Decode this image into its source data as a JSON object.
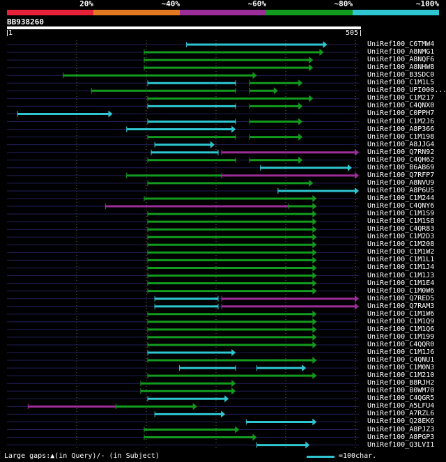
{
  "legend": {
    "segments": [
      {
        "color": "#e8213b"
      },
      {
        "color": "#e27a23"
      },
      {
        "color": "#9c2e9a"
      },
      {
        "color": "#139b1f"
      },
      {
        "color": "#2ec6d1"
      }
    ],
    "labels": [
      "20%",
      "~40%",
      "~60%",
      "~80%",
      "~100%"
    ]
  },
  "query": {
    "id": "BB938260",
    "start": "1",
    "end": "505",
    "length": 505
  },
  "colors": {
    "cyan": "#2ec6d1",
    "green": "#139b1f",
    "purple": "#9c2e9a",
    "rowline": "#20205a",
    "gridline": "#6a6a6a"
  },
  "hits": [
    {
      "id": "UniRef100_C6TMW4",
      "segs": [
        [
          0.51,
          0.91,
          "cyan"
        ]
      ]
    },
    {
      "id": "UniRef100_A8NMG1",
      "segs": [
        [
          0.39,
          0.9,
          "green"
        ]
      ]
    },
    {
      "id": "UniRef100_A8NQF6",
      "segs": [
        [
          0.39,
          0.87,
          "green"
        ]
      ]
    },
    {
      "id": "UniRef100_A8NHW8",
      "segs": [
        [
          0.39,
          0.87,
          "green"
        ]
      ]
    },
    {
      "id": "UniRef100_B3SDC0",
      "segs": [
        [
          0.16,
          0.71,
          "green"
        ]
      ]
    },
    {
      "id": "UniRef100_C1M1L5",
      "segs": [
        [
          0.4,
          0.65,
          "cyan"
        ],
        [
          0.69,
          0.84,
          "green"
        ]
      ]
    },
    {
      "id": "UniRef100_UPI000...",
      "segs": [
        [
          0.24,
          0.65,
          "green"
        ],
        [
          0.69,
          0.77,
          "green"
        ]
      ]
    },
    {
      "id": "UniRef100_C1M217",
      "segs": [
        [
          0.4,
          0.87,
          "green"
        ]
      ]
    },
    {
      "id": "UniRef100_C4QNX0",
      "segs": [
        [
          0.4,
          0.65,
          "cyan"
        ],
        [
          0.69,
          0.84,
          "green"
        ]
      ]
    },
    {
      "id": "UniRef100_C0PPH7",
      "segs": [
        [
          0.03,
          0.3,
          "cyan"
        ]
      ]
    },
    {
      "id": "UniRef100_C1M2J6",
      "segs": [
        [
          0.4,
          0.65,
          "cyan"
        ],
        [
          0.69,
          0.84,
          "green"
        ]
      ]
    },
    {
      "id": "UniRef100_A8P366",
      "segs": [
        [
          0.34,
          0.65,
          "cyan"
        ]
      ]
    },
    {
      "id": "UniRef100_C1M198",
      "segs": [
        [
          0.4,
          0.65,
          "green"
        ],
        [
          0.69,
          0.84,
          "green"
        ]
      ]
    },
    {
      "id": "UniRef100_A8JJG4",
      "segs": [
        [
          0.42,
          0.59,
          "cyan"
        ]
      ]
    },
    {
      "id": "UniRef100_Q7RN92",
      "segs": [
        [
          0.41,
          0.6,
          "cyan"
        ],
        [
          0.61,
          1.0,
          "purple"
        ]
      ]
    },
    {
      "id": "UniRef100_C4QH62",
      "segs": [
        [
          0.4,
          0.65,
          "green"
        ],
        [
          0.69,
          0.84,
          "green"
        ]
      ]
    },
    {
      "id": "UniRef100_B6AB69",
      "segs": [
        [
          0.72,
          0.98,
          "cyan"
        ]
      ]
    },
    {
      "id": "UniRef100_Q7RFP7",
      "segs": [
        [
          0.34,
          0.61,
          "green"
        ],
        [
          0.61,
          1.0,
          "purple"
        ]
      ]
    },
    {
      "id": "UniRef100_A8NVU9",
      "segs": [
        [
          0.4,
          0.87,
          "green"
        ]
      ]
    },
    {
      "id": "UniRef100_A8P6U5",
      "segs": [
        [
          0.77,
          1.0,
          "cyan"
        ]
      ]
    },
    {
      "id": "UniRef100_C1M244",
      "segs": [
        [
          0.39,
          0.88,
          "green"
        ]
      ]
    },
    {
      "id": "UniRef100_C4QNY6",
      "segs": [
        [
          0.28,
          0.8,
          "purple"
        ],
        [
          0.8,
          0.88,
          "green"
        ]
      ]
    },
    {
      "id": "UniRef100_C1M1S9",
      "segs": [
        [
          0.4,
          0.88,
          "green"
        ]
      ]
    },
    {
      "id": "UniRef100_C1M1S8",
      "segs": [
        [
          0.4,
          0.88,
          "green"
        ]
      ]
    },
    {
      "id": "UniRef100_C4QR83",
      "segs": [
        [
          0.4,
          0.88,
          "green"
        ]
      ]
    },
    {
      "id": "UniRef100_C1M2D3",
      "segs": [
        [
          0.4,
          0.88,
          "green"
        ]
      ]
    },
    {
      "id": "UniRef100_C1M208",
      "segs": [
        [
          0.4,
          0.88,
          "green"
        ]
      ]
    },
    {
      "id": "UniRef100_C1M1W2",
      "segs": [
        [
          0.4,
          0.88,
          "green"
        ]
      ]
    },
    {
      "id": "UniRef100_C1M1L1",
      "segs": [
        [
          0.4,
          0.88,
          "green"
        ]
      ]
    },
    {
      "id": "UniRef100_C1M1J4",
      "segs": [
        [
          0.4,
          0.88,
          "green"
        ]
      ]
    },
    {
      "id": "UniRef100_C1M1J3",
      "segs": [
        [
          0.4,
          0.88,
          "green"
        ]
      ]
    },
    {
      "id": "UniRef100_C1M1E4",
      "segs": [
        [
          0.4,
          0.88,
          "green"
        ]
      ]
    },
    {
      "id": "UniRef100_C1M0W6",
      "segs": [
        [
          0.4,
          0.88,
          "green"
        ]
      ]
    },
    {
      "id": "UniRef100_Q7RED5",
      "segs": [
        [
          0.42,
          0.6,
          "cyan"
        ],
        [
          0.61,
          1.0,
          "purple"
        ]
      ]
    },
    {
      "id": "UniRef100_Q7RAM3",
      "segs": [
        [
          0.42,
          0.6,
          "cyan"
        ],
        [
          0.61,
          1.0,
          "purple"
        ]
      ]
    },
    {
      "id": "UniRef100_C1M1W6",
      "segs": [
        [
          0.4,
          0.88,
          "green"
        ]
      ]
    },
    {
      "id": "UniRef100_C1M1Q9",
      "segs": [
        [
          0.4,
          0.88,
          "green"
        ]
      ]
    },
    {
      "id": "UniRef100_C1M1Q6",
      "segs": [
        [
          0.4,
          0.88,
          "green"
        ]
      ]
    },
    {
      "id": "UniRef100_C1M199",
      "segs": [
        [
          0.4,
          0.88,
          "green"
        ]
      ]
    },
    {
      "id": "UniRef100_C4QQR0",
      "segs": [
        [
          0.4,
          0.88,
          "green"
        ]
      ]
    },
    {
      "id": "UniRef100_C1M1J6",
      "segs": [
        [
          0.4,
          0.65,
          "cyan"
        ]
      ]
    },
    {
      "id": "UniRef100_C4QNU1",
      "segs": [
        [
          0.4,
          0.88,
          "green"
        ]
      ]
    },
    {
      "id": "UniRef100_C1M0N3",
      "segs": [
        [
          0.49,
          0.65,
          "cyan"
        ],
        [
          0.71,
          0.85,
          "cyan"
        ]
      ]
    },
    {
      "id": "UniRef100_C1M210",
      "segs": [
        [
          0.4,
          0.88,
          "green"
        ]
      ]
    },
    {
      "id": "UniRef100_B8RJH2",
      "segs": [
        [
          0.38,
          0.65,
          "green"
        ]
      ]
    },
    {
      "id": "UniRef100_B0WM70",
      "segs": [
        [
          0.38,
          0.65,
          "green"
        ]
      ]
    },
    {
      "id": "UniRef100_C4QGR5",
      "segs": [
        [
          0.4,
          0.63,
          "cyan"
        ]
      ]
    },
    {
      "id": "UniRef100_A5LFU4",
      "segs": [
        [
          0.06,
          0.31,
          "purple"
        ],
        [
          0.31,
          0.54,
          "green"
        ]
      ]
    },
    {
      "id": "UniRef100_A7RZL6",
      "segs": [
        [
          0.42,
          0.62,
          "cyan"
        ]
      ]
    },
    {
      "id": "UniRef100_Q28EK6",
      "segs": [
        [
          0.68,
          0.88,
          "cyan"
        ]
      ]
    },
    {
      "id": "UniRef100_A8PJZ3",
      "segs": [
        [
          0.39,
          0.66,
          "green"
        ]
      ]
    },
    {
      "id": "UniRef100_A8PGP3",
      "segs": [
        [
          0.39,
          0.71,
          "green"
        ]
      ]
    },
    {
      "id": "UniRef100_Q3LVI1",
      "segs": [
        [
          0.71,
          0.86,
          "cyan"
        ]
      ]
    }
  ],
  "footer": {
    "gaps_text": "Large gaps:▲(in Query)/- (in Subject)",
    "scale_text": "=100char."
  }
}
